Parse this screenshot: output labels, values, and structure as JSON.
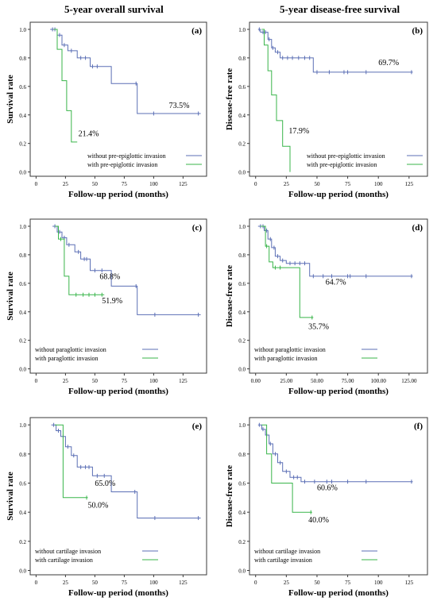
{
  "column_titles": {
    "left": "5-year overall survival",
    "right": "5-year disease-free survival"
  },
  "colors": {
    "series_1": "#5b6fb5",
    "series_2": "#39b54a",
    "frame": "#3a3a3a"
  },
  "chart_data": [
    {
      "type": "line",
      "panel_label": "(a)",
      "xlabel": "Follow-up period (months)",
      "ylabel": "Survival rate",
      "xlim": [
        -5,
        145
      ],
      "ylim": [
        -0.03,
        1.05
      ],
      "xticks": [
        "0",
        "25",
        "50",
        "75",
        "100",
        "125"
      ],
      "xtick_values": [
        0,
        25,
        50,
        75,
        100,
        125
      ],
      "yticks": [
        "0.0",
        "0.2",
        "0.4",
        "0.6",
        "0.8",
        "1.0"
      ],
      "ytick_values": [
        0,
        0.2,
        0.4,
        0.6,
        0.8,
        1.0
      ],
      "legend_position": "lower-right",
      "series": [
        {
          "name": "without pre-epiglottic invasion",
          "x": [
            12,
            18,
            18,
            22,
            22,
            27,
            27,
            35,
            35,
            46,
            46,
            64,
            64,
            86,
            86,
            140
          ],
          "y": [
            1.0,
            1.0,
            0.96,
            0.96,
            0.89,
            0.89,
            0.85,
            0.85,
            0.8,
            0.8,
            0.74,
            0.74,
            0.62,
            0.62,
            0.41,
            0.41
          ],
          "censored": [
            [
              14,
              1.0
            ],
            [
              16,
              1.0
            ],
            [
              20,
              0.96
            ],
            [
              24,
              0.89
            ],
            [
              30,
              0.85
            ],
            [
              38,
              0.8
            ],
            [
              42,
              0.8
            ],
            [
              48,
              0.74
            ],
            [
              52,
              0.74
            ],
            [
              85,
              0.62
            ],
            [
              100,
              0.41
            ],
            [
              138,
              0.41
            ]
          ],
          "end_label": "73.5%",
          "end_label_at": [
            113,
            0.45
          ]
        },
        {
          "name": "with pre-epiglottic invasion",
          "x": [
            15,
            18,
            18,
            22,
            22,
            26,
            26,
            30,
            30,
            35
          ],
          "y": [
            1.0,
            1.0,
            0.86,
            0.86,
            0.64,
            0.64,
            0.43,
            0.43,
            0.21,
            0.21
          ],
          "censored": [],
          "end_label": "21.4%",
          "end_label_at": [
            36,
            0.25
          ]
        }
      ]
    },
    {
      "type": "line",
      "panel_label": "(b)",
      "xlabel": "Follow-up period (months)",
      "ylabel": "Disease-free rate",
      "xlim": [
        -5,
        140
      ],
      "ylim": [
        -0.03,
        1.05
      ],
      "xticks": [
        "0",
        "25",
        "50",
        "75",
        "100",
        "125"
      ],
      "xtick_values": [
        0,
        25,
        50,
        75,
        100,
        125
      ],
      "yticks": [
        "0.0",
        "0.2",
        "0.4",
        "0.6",
        "0.8",
        "1.0"
      ],
      "ytick_values": [
        0,
        0.2,
        0.4,
        0.6,
        0.8,
        1.0
      ],
      "legend_position": "lower-right",
      "series": [
        {
          "name": "without pre-epiglottic invasion",
          "x": [
            2,
            4,
            4,
            10,
            10,
            13,
            13,
            16,
            16,
            20,
            20,
            47,
            47,
            128
          ],
          "y": [
            1.0,
            1.0,
            0.98,
            0.98,
            0.93,
            0.93,
            0.87,
            0.87,
            0.84,
            0.84,
            0.8,
            0.8,
            0.7,
            0.7
          ],
          "censored": [
            [
              3,
              1.0
            ],
            [
              6,
              0.98
            ],
            [
              8,
              0.98
            ],
            [
              11,
              0.93
            ],
            [
              14,
              0.87
            ],
            [
              18,
              0.84
            ],
            [
              22,
              0.8
            ],
            [
              26,
              0.8
            ],
            [
              30,
              0.8
            ],
            [
              35,
              0.8
            ],
            [
              40,
              0.8
            ],
            [
              44,
              0.8
            ],
            [
              50,
              0.7
            ],
            [
              60,
              0.7
            ],
            [
              72,
              0.7
            ],
            [
              75,
              0.7
            ],
            [
              90,
              0.7
            ],
            [
              127,
              0.7
            ]
          ],
          "end_label": "69.7%",
          "end_label_at": [
            100,
            0.75
          ]
        },
        {
          "name": "with pre-epiglottic invasion",
          "x": [
            5,
            7,
            7,
            10,
            10,
            13,
            13,
            17,
            17,
            22,
            22,
            28,
            28
          ],
          "y": [
            1.0,
            1.0,
            0.89,
            0.89,
            0.71,
            0.71,
            0.54,
            0.54,
            0.36,
            0.36,
            0.18,
            0.18,
            0.0
          ],
          "censored": [],
          "end_label": "17.9%",
          "end_label_at": [
            27,
            0.27
          ]
        }
      ]
    },
    {
      "type": "line",
      "panel_label": "(c)",
      "xlabel": "Follow-up period (months)",
      "ylabel": "Survival rate",
      "xlim": [
        -5,
        145
      ],
      "ylim": [
        -0.03,
        1.05
      ],
      "xticks": [
        "0",
        "25",
        "50",
        "75",
        "100",
        "125"
      ],
      "xtick_values": [
        0,
        25,
        50,
        75,
        100,
        125
      ],
      "yticks": [
        "0.0",
        "0.2",
        "0.4",
        "0.6",
        "0.8",
        "1.0"
      ],
      "ytick_values": [
        0,
        0.2,
        0.4,
        0.6,
        0.8,
        1.0
      ],
      "legend_position": "lower-left",
      "series": [
        {
          "name": "without paraglottic invasion",
          "x": [
            14,
            18,
            18,
            22,
            22,
            26,
            26,
            33,
            33,
            38,
            38,
            46,
            46,
            64,
            64,
            86,
            86,
            140
          ],
          "y": [
            1.0,
            1.0,
            0.96,
            0.96,
            0.92,
            0.92,
            0.87,
            0.87,
            0.82,
            0.82,
            0.77,
            0.77,
            0.69,
            0.69,
            0.58,
            0.58,
            0.38,
            0.38
          ],
          "censored": [
            [
              16,
              1.0
            ],
            [
              20,
              0.96
            ],
            [
              24,
              0.92
            ],
            [
              28,
              0.87
            ],
            [
              36,
              0.82
            ],
            [
              41,
              0.77
            ],
            [
              43,
              0.77
            ],
            [
              50,
              0.69
            ],
            [
              56,
              0.69
            ],
            [
              85,
              0.58
            ],
            [
              101,
              0.38
            ],
            [
              138,
              0.38
            ]
          ],
          "end_label": "68.8%",
          "end_label_at": [
            54,
            0.63
          ]
        },
        {
          "name": "with paraglottic invasion",
          "x": [
            16,
            19,
            19,
            24,
            24,
            28,
            28,
            58
          ],
          "y": [
            1.0,
            1.0,
            0.91,
            0.91,
            0.65,
            0.65,
            0.52,
            0.52
          ],
          "censored": [
            [
              21,
              0.91
            ],
            [
              34,
              0.52
            ],
            [
              40,
              0.52
            ],
            [
              45,
              0.52
            ],
            [
              50,
              0.52
            ],
            [
              56,
              0.52
            ]
          ],
          "end_label": "51.9%",
          "end_label_at": [
            56,
            0.46
          ]
        }
      ]
    },
    {
      "type": "line",
      "panel_label": "(d)",
      "xlabel": "Follow-up period (months)",
      "ylabel": "Disease-free rate",
      "xlim": [
        -5,
        140
      ],
      "ylim": [
        -0.03,
        1.05
      ],
      "xticks": [
        "0.00",
        "25.00",
        "50.00",
        "75.00",
        "100.00",
        "125.00"
      ],
      "xtick_values": [
        0,
        25,
        50,
        75,
        100,
        125
      ],
      "yticks": [
        "0.0",
        "0.2",
        "0.4",
        "0.6",
        "0.8",
        "1.0"
      ],
      "ytick_values": [
        0,
        0.2,
        0.4,
        0.6,
        0.8,
        1.0
      ],
      "legend_position": "lower-left",
      "series": [
        {
          "name": "without paraglottic invasion",
          "x": [
            2,
            7,
            7,
            10,
            10,
            13,
            13,
            16,
            16,
            20,
            20,
            25,
            25,
            44,
            44,
            128
          ],
          "y": [
            1.0,
            1.0,
            0.97,
            0.97,
            0.91,
            0.91,
            0.85,
            0.85,
            0.79,
            0.79,
            0.76,
            0.76,
            0.74,
            0.74,
            0.65,
            0.65
          ],
          "censored": [
            [
              4,
              1.0
            ],
            [
              6,
              1.0
            ],
            [
              9,
              0.97
            ],
            [
              12,
              0.91
            ],
            [
              15,
              0.85
            ],
            [
              18,
              0.79
            ],
            [
              22,
              0.76
            ],
            [
              28,
              0.74
            ],
            [
              32,
              0.74
            ],
            [
              36,
              0.74
            ],
            [
              40,
              0.74
            ],
            [
              47,
              0.65
            ],
            [
              55,
              0.65
            ],
            [
              62,
              0.65
            ],
            [
              75,
              0.65
            ],
            [
              77,
              0.65
            ],
            [
              90,
              0.65
            ],
            [
              127,
              0.65
            ]
          ],
          "end_label": "64.7%",
          "end_label_at": [
            57,
            0.59
          ]
        },
        {
          "name": "with paraglottic invasion",
          "x": [
            4,
            8,
            8,
            11,
            11,
            14,
            14,
            36,
            36,
            47
          ],
          "y": [
            1.0,
            1.0,
            0.86,
            0.86,
            0.75,
            0.75,
            0.71,
            0.71,
            0.36,
            0.36
          ],
          "censored": [
            [
              9,
              0.86
            ],
            [
              16,
              0.71
            ],
            [
              20,
              0.71
            ],
            [
              46,
              0.36
            ]
          ],
          "end_label": "35.7%",
          "end_label_at": [
            43,
            0.28
          ]
        }
      ]
    },
    {
      "type": "line",
      "panel_label": "(e)",
      "xlabel": "Follow-up period (months)",
      "ylabel": "Survival rate",
      "xlim": [
        -5,
        145
      ],
      "ylim": [
        -0.03,
        1.05
      ],
      "xticks": [
        "0",
        "25",
        "50",
        "75",
        "100",
        "125"
      ],
      "xtick_values": [
        0,
        25,
        50,
        75,
        100,
        125
      ],
      "yticks": [
        "0.0",
        "0.2",
        "0.4",
        "0.6",
        "0.8",
        "1.0"
      ],
      "ytick_values": [
        0,
        0.2,
        0.4,
        0.6,
        0.8,
        1.0
      ],
      "legend_position": "lower-left",
      "series": [
        {
          "name": "without cartilage  invasion",
          "x": [
            13,
            17,
            17,
            21,
            21,
            25,
            25,
            30,
            30,
            35,
            35,
            48,
            48,
            64,
            64,
            86,
            86,
            140
          ],
          "y": [
            1.0,
            1.0,
            0.96,
            0.96,
            0.92,
            0.92,
            0.85,
            0.85,
            0.79,
            0.79,
            0.71,
            0.71,
            0.65,
            0.65,
            0.54,
            0.54,
            0.36,
            0.36
          ],
          "censored": [
            [
              15,
              1.0
            ],
            [
              19,
              0.96
            ],
            [
              23,
              0.92
            ],
            [
              27,
              0.85
            ],
            [
              32,
              0.79
            ],
            [
              38,
              0.71
            ],
            [
              42,
              0.71
            ],
            [
              45,
              0.71
            ],
            [
              52,
              0.65
            ],
            [
              58,
              0.65
            ],
            [
              84,
              0.54
            ],
            [
              101,
              0.36
            ],
            [
              138,
              0.36
            ]
          ],
          "end_label": "65.0%",
          "end_label_at": [
            50,
            0.58
          ]
        },
        {
          "name": "with cartilage  invasion",
          "x": [
            16,
            23,
            23,
            44
          ],
          "y": [
            1.0,
            1.0,
            0.5,
            0.5
          ],
          "censored": [
            [
              43,
              0.5
            ]
          ],
          "end_label": "50.0%",
          "end_label_at": [
            44,
            0.43
          ]
        }
      ]
    },
    {
      "type": "line",
      "panel_label": "(f)",
      "xlabel": "Follow-up period (months)",
      "ylabel": "Disease-free rate",
      "xlim": [
        -5,
        140
      ],
      "ylim": [
        -0.03,
        1.05
      ],
      "xticks": [
        "0",
        "25",
        "50",
        "75",
        "100",
        "125"
      ],
      "xtick_values": [
        0,
        25,
        50,
        75,
        100,
        125
      ],
      "yticks": [
        "0.0",
        "0.2",
        "0.4",
        "0.6",
        "0.8",
        "1.0"
      ],
      "ytick_values": [
        0,
        0.2,
        0.4,
        0.6,
        0.8,
        1.0
      ],
      "legend_position": "lower-left",
      "series": [
        {
          "name": "without cartilage  invasion",
          "x": [
            2,
            5,
            5,
            8,
            8,
            11,
            11,
            14,
            14,
            18,
            18,
            22,
            22,
            28,
            28,
            37,
            37,
            46,
            46,
            128
          ],
          "y": [
            1.0,
            1.0,
            0.97,
            0.97,
            0.93,
            0.93,
            0.87,
            0.87,
            0.8,
            0.8,
            0.74,
            0.74,
            0.68,
            0.68,
            0.64,
            0.64,
            0.61,
            0.61,
            0.61,
            0.61
          ],
          "censored": [
            [
              3,
              1.0
            ],
            [
              6,
              0.97
            ],
            [
              9,
              0.93
            ],
            [
              12,
              0.87
            ],
            [
              16,
              0.8
            ],
            [
              20,
              0.74
            ],
            [
              25,
              0.68
            ],
            [
              31,
              0.64
            ],
            [
              34,
              0.64
            ],
            [
              40,
              0.61
            ],
            [
              48,
              0.61
            ],
            [
              58,
              0.61
            ],
            [
              62,
              0.61
            ],
            [
              75,
              0.61
            ],
            [
              90,
              0.61
            ],
            [
              127,
              0.61
            ]
          ],
          "end_label": "60.6%",
          "end_label_at": [
            50,
            0.55
          ]
        },
        {
          "name": "with cartilage  invasion",
          "x": [
            5,
            9,
            9,
            13,
            13,
            30,
            30,
            46
          ],
          "y": [
            1.0,
            1.0,
            0.8,
            0.8,
            0.6,
            0.6,
            0.4,
            0.4
          ],
          "censored": [
            [
              45,
              0.4
            ]
          ],
          "end_label": "40.0%",
          "end_label_at": [
            43,
            0.33
          ]
        }
      ]
    }
  ]
}
